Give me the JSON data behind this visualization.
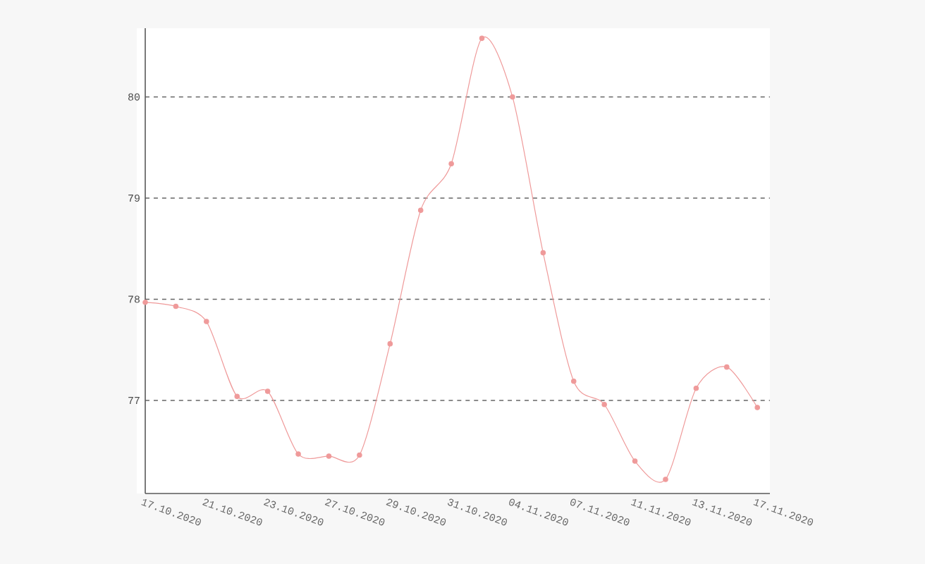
{
  "chart_data": {
    "type": "line",
    "categories": [
      "17.10.2020",
      null,
      "21.10.2020",
      null,
      "23.10.2020",
      null,
      "27.10.2020",
      null,
      "29.10.2020",
      null,
      "31.10.2020",
      null,
      "04.11.2020",
      null,
      "07.11.2020",
      null,
      "11.11.2020",
      null,
      "13.11.2020",
      null,
      "17.11.2020"
    ],
    "series": [
      {
        "color": "#ef9a9a",
        "values": [
          77.97,
          77.93,
          77.78,
          77.04,
          77.09,
          76.47,
          76.45,
          76.46,
          77.56,
          78.88,
          79.34,
          80.58,
          80.0,
          78.46,
          77.19,
          76.96,
          76.4,
          76.22,
          77.12,
          77.33,
          76.93
        ]
      }
    ],
    "ylim": [
      76.08,
      80.68
    ],
    "yticks": [
      77,
      78,
      79,
      80
    ],
    "grid": "y",
    "marker": "circle"
  }
}
